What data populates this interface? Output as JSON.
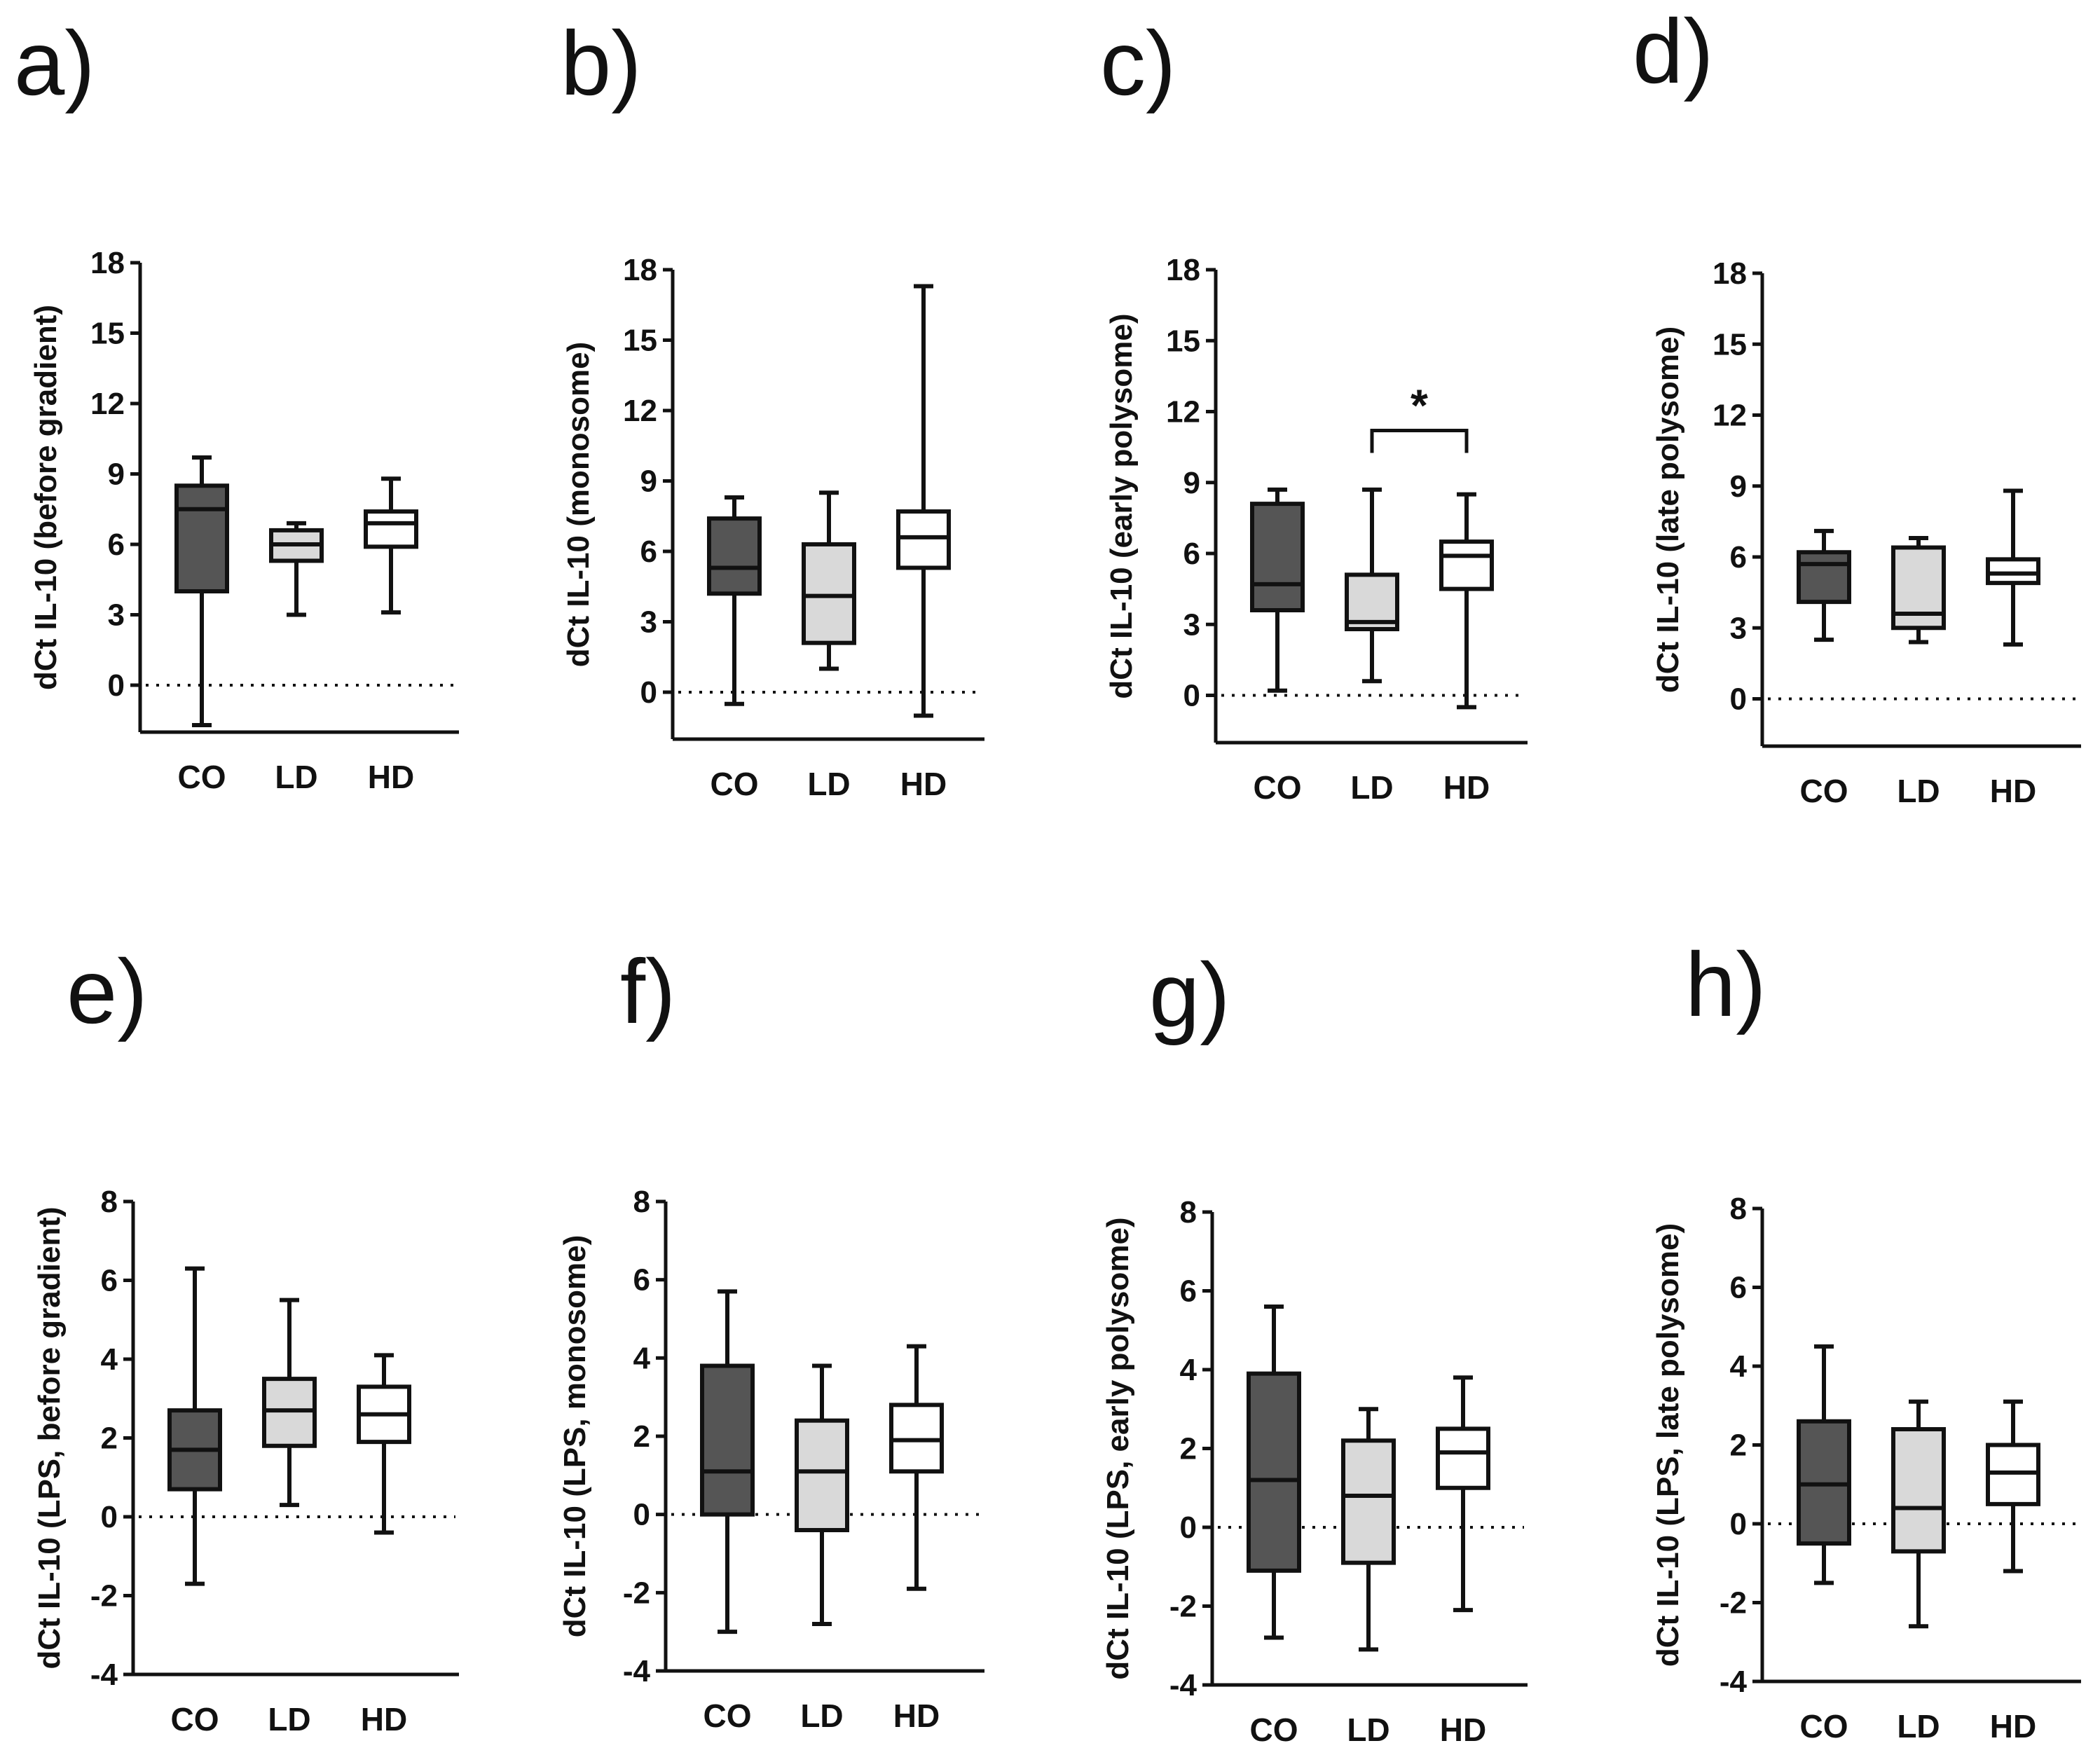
{
  "chart_data": [
    {
      "panel": "a)",
      "type": "box",
      "ylabel": "dCt IL-10 (before gradient)",
      "yticks": [
        0,
        3,
        6,
        9,
        12,
        15,
        18
      ],
      "ylim": [
        -2,
        18
      ],
      "reference_line": 0,
      "categories": [
        "CO",
        "LD",
        "HD"
      ],
      "boxes": [
        {
          "category": "CO",
          "min": -1.7,
          "q1": 4.0,
          "median": 7.5,
          "q3": 8.5,
          "max": 9.7,
          "color": "#555555"
        },
        {
          "category": "LD",
          "min": 3.0,
          "q1": 5.3,
          "median": 6.0,
          "q3": 6.6,
          "max": 6.9,
          "color": "#d9d9d9"
        },
        {
          "category": "HD",
          "min": 3.1,
          "q1": 5.9,
          "median": 6.9,
          "q3": 7.4,
          "max": 8.8,
          "color": "#ffffff"
        }
      ],
      "significance": []
    },
    {
      "panel": "b)",
      "type": "box",
      "ylabel": "dCt IL-10 (monosome)",
      "yticks": [
        0,
        3,
        6,
        9,
        12,
        15,
        18
      ],
      "ylim": [
        -2,
        18
      ],
      "reference_line": 0,
      "categories": [
        "CO",
        "LD",
        "HD"
      ],
      "boxes": [
        {
          "category": "CO",
          "min": -0.5,
          "q1": 4.2,
          "median": 5.3,
          "q3": 7.4,
          "max": 8.3,
          "color": "#555555"
        },
        {
          "category": "LD",
          "min": 1.0,
          "q1": 2.1,
          "median": 4.1,
          "q3": 6.3,
          "max": 8.5,
          "color": "#d9d9d9"
        },
        {
          "category": "HD",
          "min": -1.0,
          "q1": 5.3,
          "median": 6.6,
          "q3": 7.7,
          "max": 17.3,
          "color": "#ffffff"
        }
      ],
      "significance": []
    },
    {
      "panel": "c)",
      "type": "box",
      "ylabel": "dCt IL-10 (early polysome)",
      "yticks": [
        0,
        3,
        6,
        9,
        12,
        15,
        18
      ],
      "ylim": [
        -2,
        18
      ],
      "reference_line": 0,
      "categories": [
        "CO",
        "LD",
        "HD"
      ],
      "boxes": [
        {
          "category": "CO",
          "min": 0.2,
          "q1": 3.6,
          "median": 4.7,
          "q3": 8.1,
          "max": 8.7,
          "color": "#555555"
        },
        {
          "category": "LD",
          "min": 0.6,
          "q1": 2.8,
          "median": 3.1,
          "q3": 5.1,
          "max": 8.7,
          "color": "#d9d9d9"
        },
        {
          "category": "HD",
          "min": -0.5,
          "q1": 4.5,
          "median": 5.9,
          "q3": 6.5,
          "max": 8.5,
          "color": "#ffffff"
        }
      ],
      "significance": [
        {
          "from": "LD",
          "to": "HD",
          "label": "*",
          "y": 11.2
        }
      ]
    },
    {
      "panel": "d)",
      "type": "box",
      "ylabel": "dCt IL-10 (late polysome)",
      "yticks": [
        0,
        3,
        6,
        9,
        12,
        15,
        18
      ],
      "ylim": [
        -2,
        18
      ],
      "reference_line": 0,
      "categories": [
        "CO",
        "LD",
        "HD"
      ],
      "boxes": [
        {
          "category": "CO",
          "min": 2.5,
          "q1": 4.1,
          "median": 5.7,
          "q3": 6.2,
          "max": 7.1,
          "color": "#555555"
        },
        {
          "category": "LD",
          "min": 2.4,
          "q1": 3.0,
          "median": 3.6,
          "q3": 6.4,
          "max": 6.8,
          "color": "#d9d9d9"
        },
        {
          "category": "HD",
          "min": 2.3,
          "q1": 4.9,
          "median": 5.3,
          "q3": 5.9,
          "max": 8.8,
          "color": "#ffffff"
        }
      ],
      "significance": []
    },
    {
      "panel": "e)",
      "type": "box",
      "ylabel": "dCt IL-10 (LPS, before gradient)",
      "yticks": [
        -4,
        -2,
        0,
        2,
        4,
        6,
        8
      ],
      "ylim": [
        -4,
        8
      ],
      "reference_line": 0,
      "categories": [
        "CO",
        "LD",
        "HD"
      ],
      "boxes": [
        {
          "category": "CO",
          "min": -1.7,
          "q1": 0.7,
          "median": 1.7,
          "q3": 2.7,
          "max": 6.3,
          "color": "#555555"
        },
        {
          "category": "LD",
          "min": 0.3,
          "q1": 1.8,
          "median": 2.7,
          "q3": 3.5,
          "max": 5.5,
          "color": "#d9d9d9"
        },
        {
          "category": "HD",
          "min": -0.4,
          "q1": 1.9,
          "median": 2.6,
          "q3": 3.3,
          "max": 4.1,
          "color": "#ffffff"
        }
      ],
      "significance": []
    },
    {
      "panel": "f)",
      "type": "box",
      "ylabel": "dCt IL-10 (LPS, monosome)",
      "yticks": [
        -4,
        -2,
        0,
        2,
        4,
        6,
        8
      ],
      "ylim": [
        -4,
        8
      ],
      "reference_line": 0,
      "categories": [
        "CO",
        "LD",
        "HD"
      ],
      "boxes": [
        {
          "category": "CO",
          "min": -3.0,
          "q1": 0.0,
          "median": 1.1,
          "q3": 3.8,
          "max": 5.7,
          "color": "#555555"
        },
        {
          "category": "LD",
          "min": -2.8,
          "q1": -0.4,
          "median": 1.1,
          "q3": 2.4,
          "max": 3.8,
          "color": "#d9d9d9"
        },
        {
          "category": "HD",
          "min": -1.9,
          "q1": 1.1,
          "median": 1.9,
          "q3": 2.8,
          "max": 4.3,
          "color": "#ffffff"
        }
      ],
      "significance": []
    },
    {
      "panel": "g)",
      "type": "box",
      "ylabel": "dCt IL-10 (LPS, early polysome)",
      "yticks": [
        -4,
        -2,
        0,
        2,
        4,
        6,
        8
      ],
      "ylim": [
        -4,
        8
      ],
      "reference_line": 0,
      "categories": [
        "CO",
        "LD",
        "HD"
      ],
      "boxes": [
        {
          "category": "CO",
          "min": -2.8,
          "q1": -1.1,
          "median": 1.2,
          "q3": 3.9,
          "max": 5.6,
          "color": "#555555"
        },
        {
          "category": "LD",
          "min": -3.1,
          "q1": -0.9,
          "median": 0.8,
          "q3": 2.2,
          "max": 3.0,
          "color": "#d9d9d9"
        },
        {
          "category": "HD",
          "min": -2.1,
          "q1": 1.0,
          "median": 1.9,
          "q3": 2.5,
          "max": 3.8,
          "color": "#ffffff"
        }
      ],
      "significance": []
    },
    {
      "panel": "h)",
      "type": "box",
      "ylabel": "dCt IL-10 (LPS, late polysome)",
      "yticks": [
        -4,
        -2,
        0,
        2,
        4,
        6,
        8
      ],
      "ylim": [
        -4,
        8
      ],
      "reference_line": 0,
      "categories": [
        "CO",
        "LD",
        "HD"
      ],
      "boxes": [
        {
          "category": "CO",
          "min": -1.5,
          "q1": -0.5,
          "median": 1.0,
          "q3": 2.6,
          "max": 4.5,
          "color": "#555555"
        },
        {
          "category": "LD",
          "min": -2.6,
          "q1": -0.7,
          "median": 0.4,
          "q3": 2.4,
          "max": 3.1,
          "color": "#d9d9d9"
        },
        {
          "category": "HD",
          "min": -1.2,
          "q1": 0.5,
          "median": 1.3,
          "q3": 2.0,
          "max": 3.1,
          "color": "#ffffff"
        }
      ],
      "significance": []
    }
  ]
}
